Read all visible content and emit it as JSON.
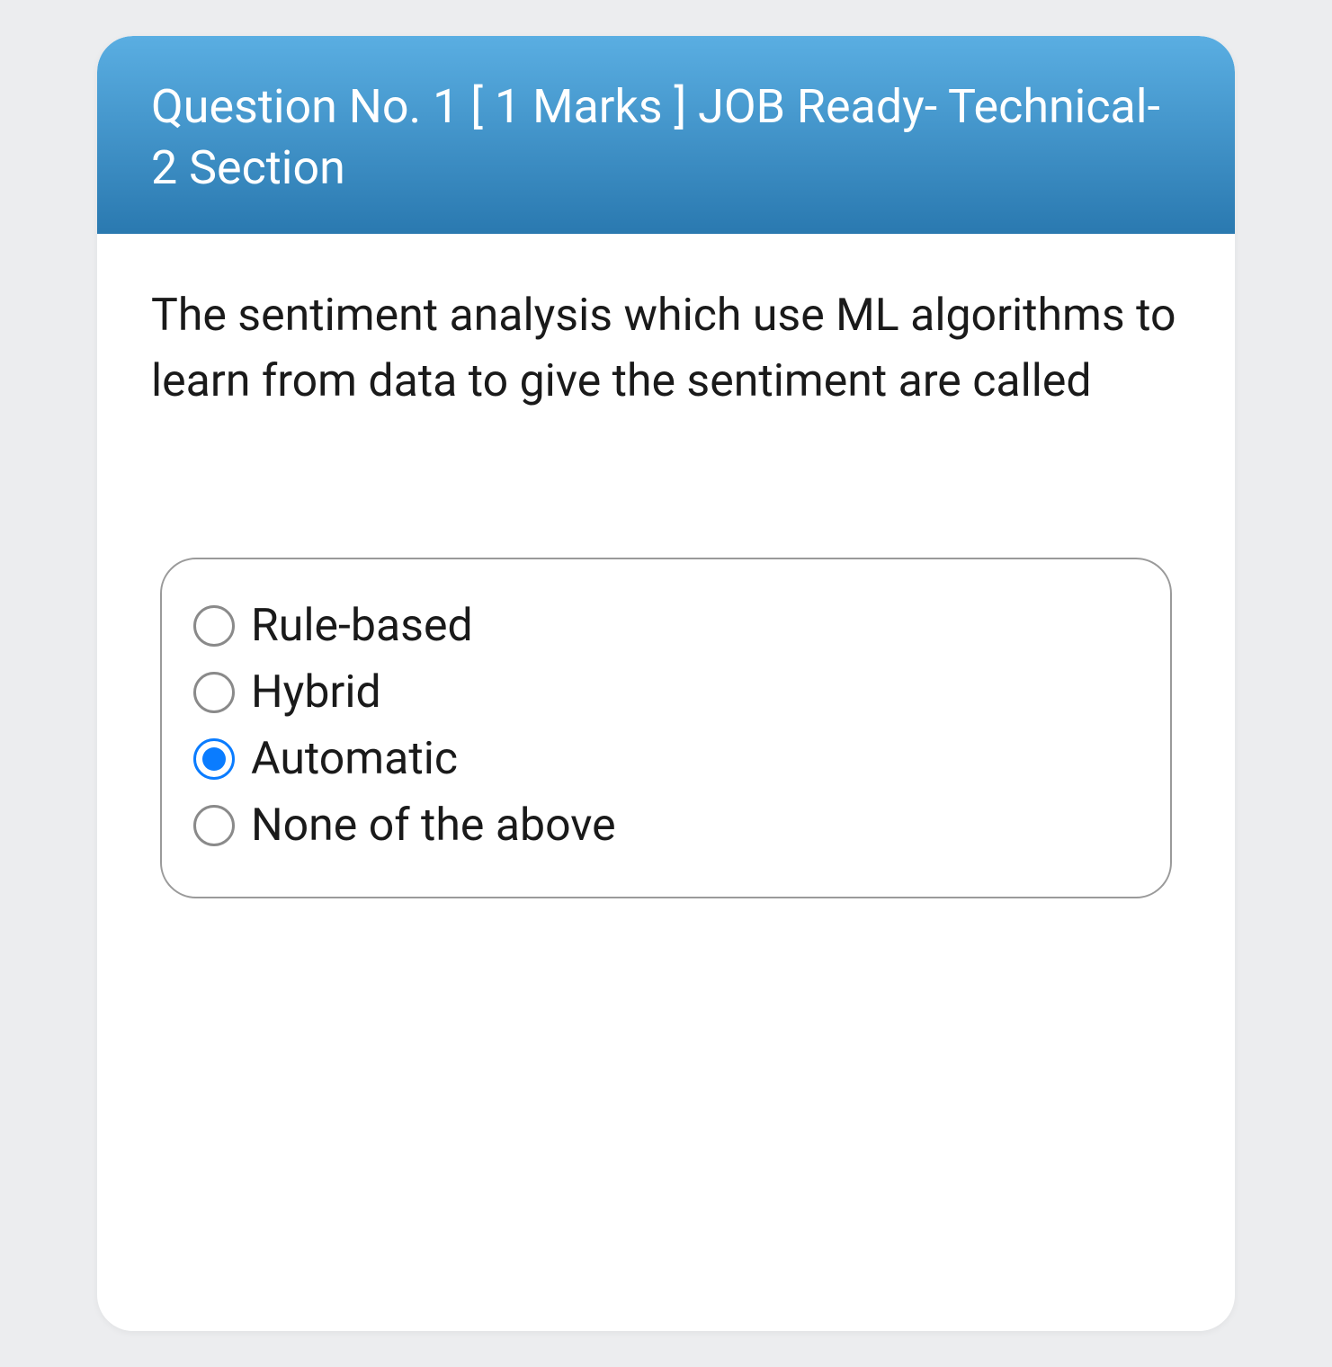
{
  "header": {
    "text": "Question No. 1   [ 1 Marks ]   JOB Ready- Technical-2 Section"
  },
  "question": {
    "text": "The sentiment analysis which use ML algorithms to learn from data to give the sentiment are called"
  },
  "options": [
    {
      "label": "Rule-based",
      "selected": false
    },
    {
      "label": "Hybrid",
      "selected": false
    },
    {
      "label": "Automatic",
      "selected": true
    },
    {
      "label": "None of the above",
      "selected": false
    }
  ],
  "colors": {
    "page_bg": "#ecedef",
    "header_gradient_top": "#5aaee2",
    "header_gradient_bottom": "#2a79b0",
    "header_text": "#ffffff",
    "card_bg": "#ffffff",
    "text": "#1a1a1a",
    "option_border": "#9a9a9a",
    "radio_border": "#8a8a8a",
    "radio_selected": "#0a7cff"
  },
  "typography": {
    "header_fontsize": 52,
    "question_fontsize": 50,
    "option_fontsize": 50
  }
}
